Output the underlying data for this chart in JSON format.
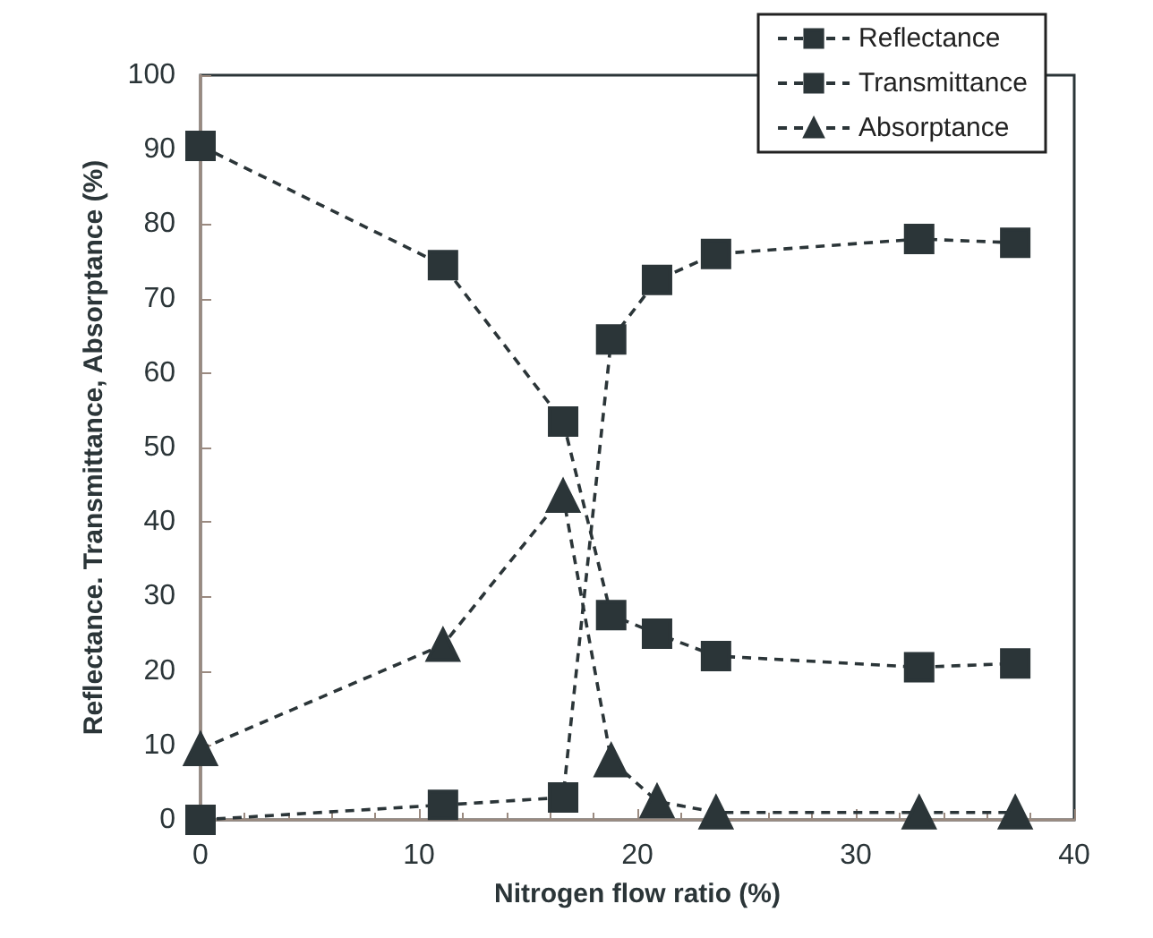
{
  "chart_data": {
    "type": "line",
    "xlabel": "Nitrogen flow ratio (%)",
    "ylabel": "Reflectance. Transmittance, Absorptance (%)",
    "x": [
      0,
      11.1,
      16.6,
      18.8,
      20.9,
      23.6,
      32.9,
      37.3
    ],
    "series": [
      {
        "name": "Reflectance",
        "color": "#2b3538",
        "marker": "square",
        "values": [
          90.5,
          74.5,
          53.5,
          27.5,
          25,
          22,
          20.5,
          21
        ]
      },
      {
        "name": "Transmittance",
        "color": "#2b3538",
        "marker": "square",
        "values": [
          0,
          2,
          3,
          64.5,
          72.5,
          76,
          78,
          77.5
        ]
      },
      {
        "name": "Absorptance",
        "color": "#2b3538",
        "marker": "triangle",
        "values": [
          9.5,
          23.5,
          43.5,
          8,
          2.5,
          1,
          1,
          1
        ]
      }
    ],
    "xlim": [
      0,
      40
    ],
    "xticks": [
      0,
      10,
      20,
      30,
      40
    ],
    "ylim": [
      0,
      100
    ],
    "yticks": [
      0,
      10,
      20,
      30,
      40,
      50,
      60,
      70,
      80,
      90,
      100
    ],
    "grid": false,
    "legend": "top right",
    "line_style": "dashed"
  }
}
